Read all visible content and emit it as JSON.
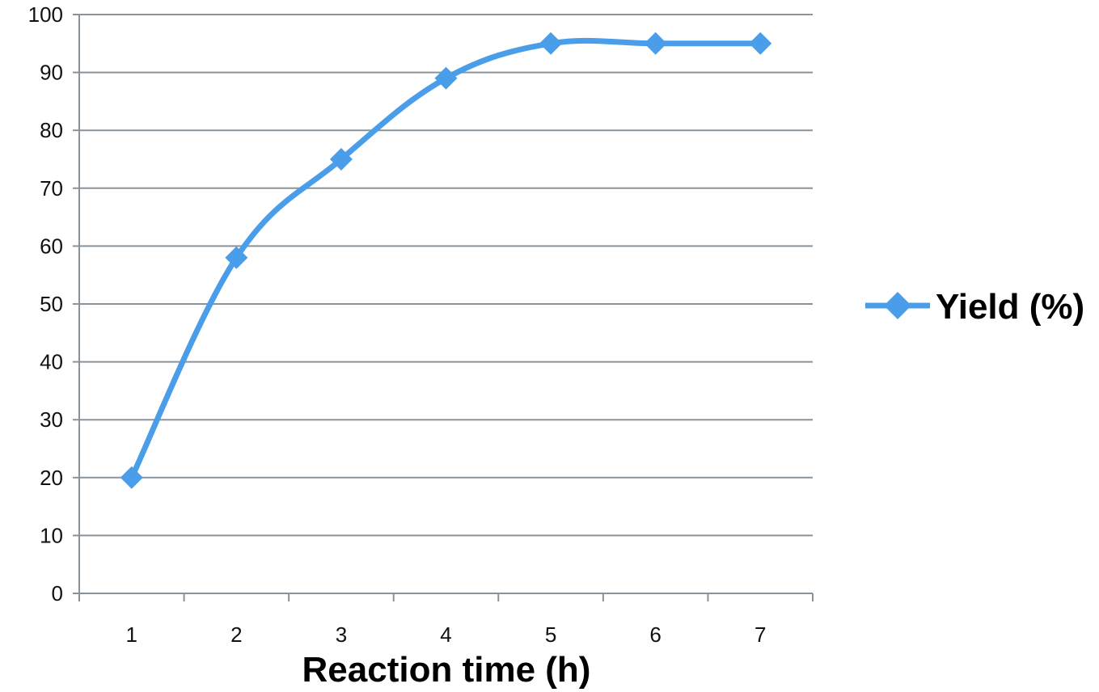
{
  "chart_data": {
    "type": "line",
    "title": "",
    "xlabel": "Reaction time (h)",
    "ylabel": "",
    "categories": [
      "1",
      "2",
      "3",
      "4",
      "5",
      "6",
      "7"
    ],
    "series": [
      {
        "name": "Yield (%)",
        "values": [
          20,
          58,
          75,
          89,
          95,
          95,
          95
        ],
        "color": "#4a9de8",
        "marker": "diamond"
      }
    ],
    "ylim": [
      0,
      100
    ],
    "yticks": [
      "0",
      "10",
      "20",
      "30",
      "40",
      "50",
      "60",
      "70",
      "80",
      "90",
      "100"
    ],
    "grid": "horizontal",
    "legend_position": "right"
  },
  "colors": {
    "series_line": "#4a9de8",
    "gridline": "#8a939a",
    "axis": "#8a939a",
    "text": "#111111"
  }
}
